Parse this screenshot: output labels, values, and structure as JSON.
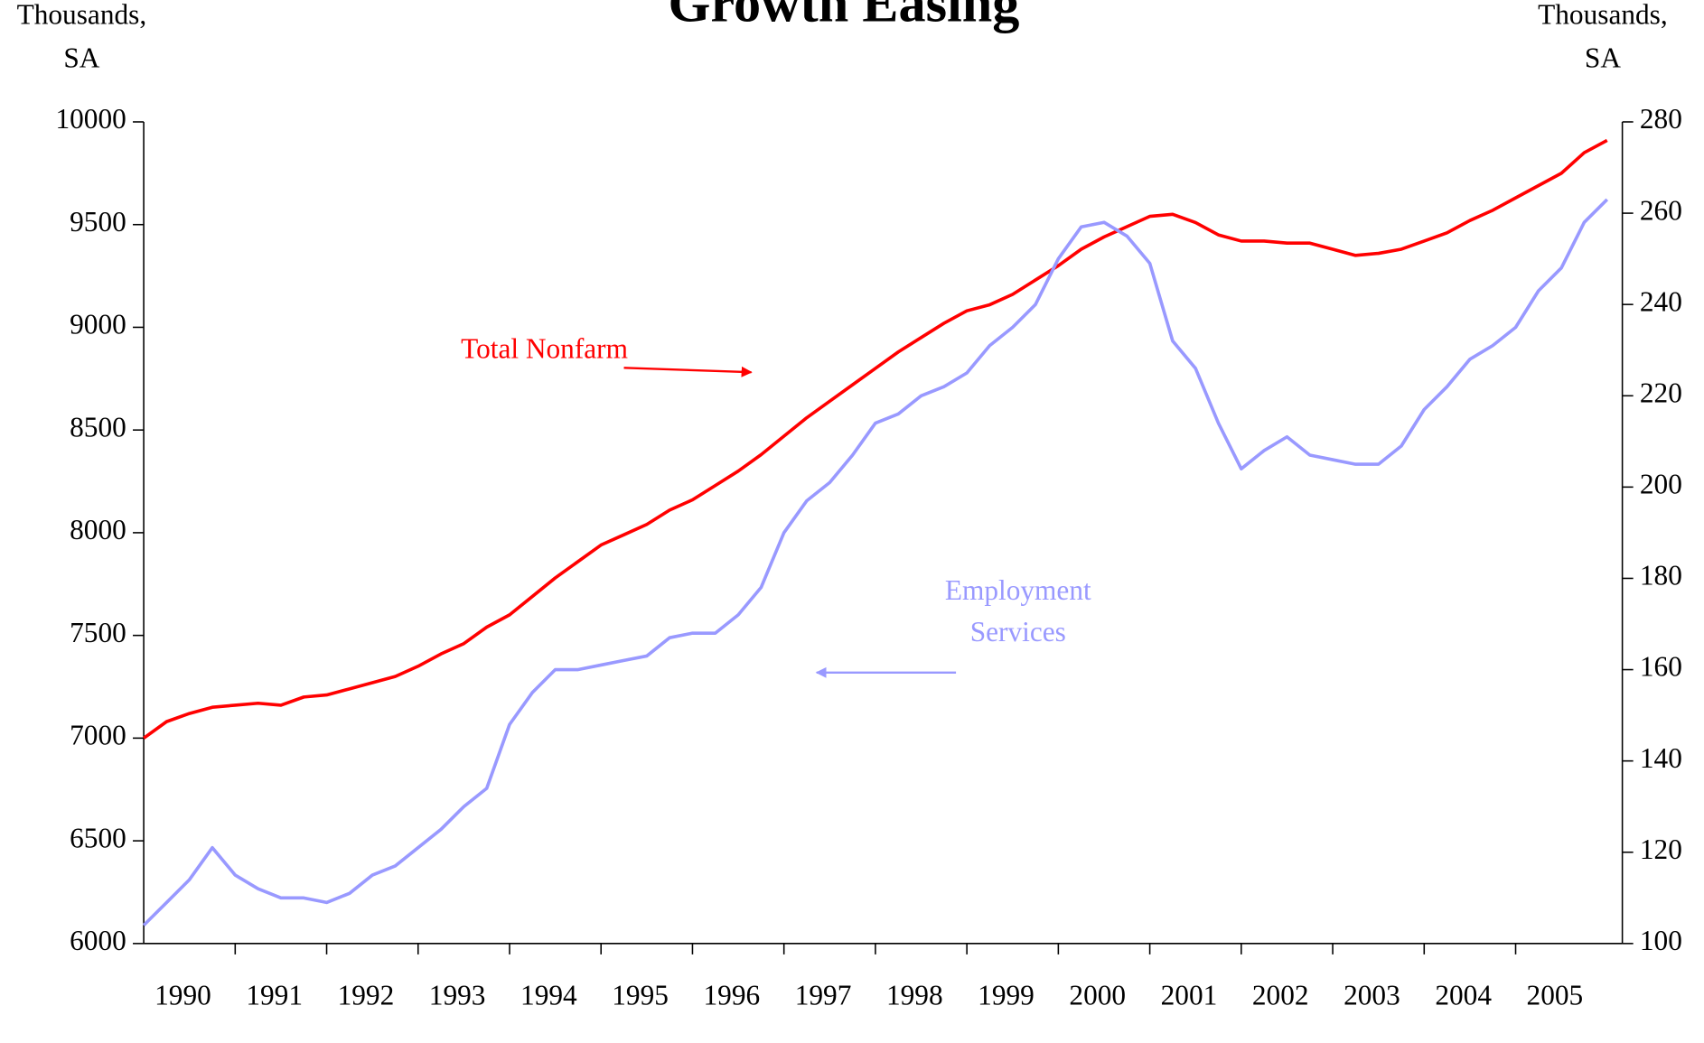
{
  "chart_data": {
    "type": "line",
    "title": "Growth Easing",
    "y_label": [
      "Thousands,",
      "SA"
    ],
    "y2_label": [
      "Thousands,",
      "SA"
    ],
    "annotations": [
      [
        "Total Nonfarm"
      ],
      [
        "Employment",
        "Services"
      ]
    ],
    "categories": [
      "1990",
      null,
      null,
      null,
      "1991",
      null,
      null,
      null,
      "1992",
      null,
      null,
      null,
      "1993",
      null,
      null,
      null,
      "1994",
      null,
      null,
      null,
      "1995",
      null,
      null,
      null,
      "1996",
      null,
      null,
      null,
      "1997",
      null,
      null,
      null,
      "1998",
      null,
      null,
      null,
      "1999",
      null,
      null,
      null,
      "2000",
      null,
      null,
      null,
      "2001",
      null,
      null,
      null,
      "2002",
      null,
      null,
      null,
      "2003",
      null,
      null,
      null,
      "2004",
      null,
      null,
      null,
      "2005",
      null,
      null,
      null,
      null
    ],
    "series": [
      {
        "name": "Total Nonfarm",
        "color": "#ff0000",
        "axis": "y",
        "values": [
          7000,
          7080,
          7120,
          7150,
          7160,
          7170,
          7160,
          7200,
          7210,
          7240,
          7270,
          7300,
          7350,
          7410,
          7460,
          7540,
          7600,
          7690,
          7780,
          7860,
          7940,
          7990,
          8040,
          8110,
          8160,
          8230,
          8300,
          8380,
          8470,
          8560,
          8640,
          8720,
          8800,
          8880,
          8950,
          9020,
          9080,
          9110,
          9160,
          9230,
          9300,
          9380,
          9440,
          9490,
          9540,
          9550,
          9510,
          9450,
          9420,
          9420,
          9410,
          9410,
          9380,
          9350,
          9360,
          9380,
          9420,
          9460,
          9520,
          9570,
          9630,
          9690,
          9750,
          9850,
          9910
        ]
      },
      {
        "name": "Employment Services",
        "color": "#9999ff",
        "axis": "y2",
        "values": [
          104,
          109,
          114,
          121,
          115,
          112,
          110,
          110,
          109,
          111,
          115,
          117,
          121,
          125,
          130,
          134,
          148,
          155,
          160,
          160,
          161,
          162,
          163,
          167,
          168,
          168,
          172,
          178,
          190,
          197,
          201,
          207,
          214,
          216,
          220,
          222,
          225,
          231,
          235,
          240,
          250,
          257,
          258,
          255,
          249,
          232,
          226,
          214,
          204,
          208,
          211,
          207,
          206,
          205,
          205,
          209,
          217,
          222,
          228,
          231,
          235,
          243,
          248,
          258,
          263
        ]
      }
    ],
    "ylim": [
      6000,
      10000
    ],
    "yticks": [
      6000,
      6500,
      7000,
      7500,
      8000,
      8500,
      9000,
      9500,
      10000
    ],
    "y2lim": [
      100,
      280
    ],
    "y2ticks": [
      100,
      120,
      140,
      160,
      180,
      200,
      220,
      240,
      260,
      280
    ],
    "grid": false
  }
}
